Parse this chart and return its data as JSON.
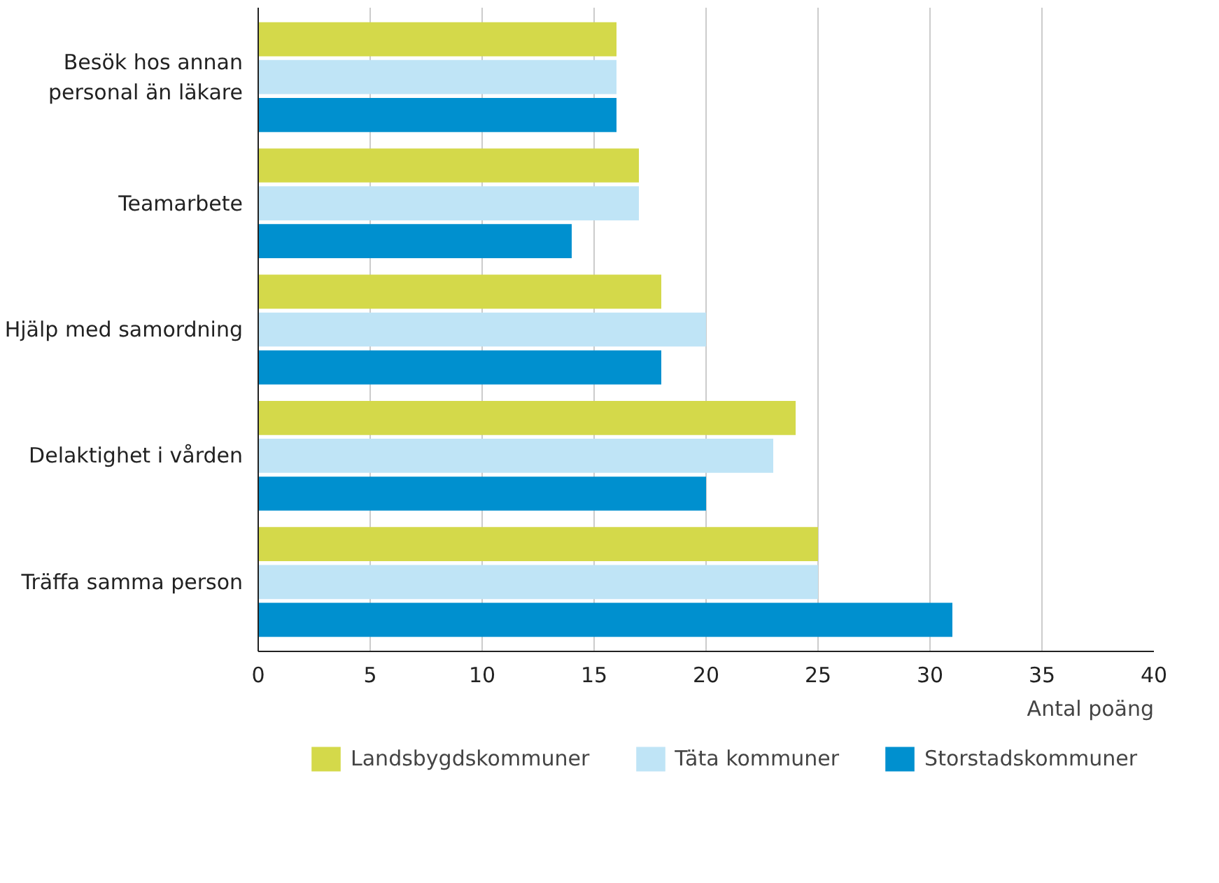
{
  "chart_data": {
    "type": "bar",
    "orientation": "horizontal",
    "xlabel": "Antal poäng",
    "categories": [
      "Besök hos annan personal än läkare",
      "Teamarbete",
      "Hjälp med samordning",
      "Delaktighet i vården",
      "Träffa samma person"
    ],
    "series": [
      {
        "name": "Landsbygdskommuner",
        "color": "#d4d94a",
        "values": [
          16,
          17,
          18,
          24,
          25
        ]
      },
      {
        "name": "Täta kommuner",
        "color": "#bfe4f6",
        "values": [
          16,
          17,
          20,
          23,
          25
        ]
      },
      {
        "name": "Storstadskommuner",
        "color": "#0090cf",
        "values": [
          16,
          14,
          18,
          20,
          31
        ]
      }
    ],
    "xlim": [
      0,
      40
    ],
    "xticks": [
      0,
      5,
      10,
      15,
      20,
      25,
      30,
      35,
      40
    ],
    "grid": "x",
    "legend": "bottom"
  }
}
